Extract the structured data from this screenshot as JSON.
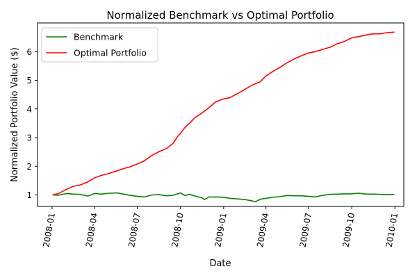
{
  "chart_data": {
    "type": "line",
    "title": "Normalized Benchmark vs Optimal Portfolio",
    "xlabel": "Date",
    "ylabel": "Normalized Portfolio Value ($)",
    "xlim": [
      "2007-12-01",
      "2010-01-20"
    ],
    "ylim": [
      0.6,
      7.0
    ],
    "x_ticks": [
      "2008-01",
      "2008-04",
      "2008-07",
      "2008-10",
      "2009-01",
      "2009-04",
      "2009-07",
      "2009-10",
      "2010-01"
    ],
    "y_ticks": [
      1,
      2,
      3,
      4,
      5,
      6
    ],
    "grid": false,
    "legend_position": "top-left",
    "series": [
      {
        "name": "Benchmark",
        "color": "#008000",
        "points": [
          [
            "2008-01-02",
            1.0
          ],
          [
            "2008-01-15",
            0.99
          ],
          [
            "2008-02-01",
            1.05
          ],
          [
            "2008-02-15",
            1.03
          ],
          [
            "2008-03-01",
            1.02
          ],
          [
            "2008-03-17",
            0.96
          ],
          [
            "2008-04-01",
            1.05
          ],
          [
            "2008-04-15",
            1.03
          ],
          [
            "2008-05-01",
            1.06
          ],
          [
            "2008-05-20",
            1.07
          ],
          [
            "2008-06-01",
            1.03
          ],
          [
            "2008-06-15",
            0.99
          ],
          [
            "2008-07-01",
            0.95
          ],
          [
            "2008-07-15",
            0.93
          ],
          [
            "2008-08-01",
            1.0
          ],
          [
            "2008-08-15",
            1.01
          ],
          [
            "2008-09-01",
            0.97
          ],
          [
            "2008-09-15",
            0.99
          ],
          [
            "2008-09-25",
            1.04
          ],
          [
            "2008-10-01",
            1.07
          ],
          [
            "2008-10-10",
            0.98
          ],
          [
            "2008-10-20",
            1.02
          ],
          [
            "2008-11-01",
            0.96
          ],
          [
            "2008-11-15",
            0.9
          ],
          [
            "2008-11-21",
            0.84
          ],
          [
            "2008-12-01",
            0.93
          ],
          [
            "2008-12-15",
            0.93
          ],
          [
            "2009-01-01",
            0.92
          ],
          [
            "2009-01-15",
            0.88
          ],
          [
            "2009-02-01",
            0.86
          ],
          [
            "2009-02-15",
            0.84
          ],
          [
            "2009-03-01",
            0.8
          ],
          [
            "2009-03-09",
            0.76
          ],
          [
            "2009-03-20",
            0.85
          ],
          [
            "2009-04-01",
            0.88
          ],
          [
            "2009-04-15",
            0.92
          ],
          [
            "2009-05-01",
            0.94
          ],
          [
            "2009-05-15",
            0.98
          ],
          [
            "2009-06-01",
            0.97
          ],
          [
            "2009-06-15",
            0.97
          ],
          [
            "2009-07-01",
            0.95
          ],
          [
            "2009-07-15",
            0.93
          ],
          [
            "2009-08-01",
            0.99
          ],
          [
            "2009-08-15",
            1.02
          ],
          [
            "2009-09-01",
            1.03
          ],
          [
            "2009-09-15",
            1.04
          ],
          [
            "2009-10-01",
            1.04
          ],
          [
            "2009-10-15",
            1.06
          ],
          [
            "2009-11-01",
            1.03
          ],
          [
            "2009-11-15",
            1.03
          ],
          [
            "2009-12-01",
            1.02
          ],
          [
            "2009-12-15",
            1.01
          ],
          [
            "2009-12-31",
            1.02
          ]
        ]
      },
      {
        "name": "Optimal Portfolio",
        "color": "#ff0000",
        "points": [
          [
            "2008-01-02",
            1.0
          ],
          [
            "2008-01-15",
            1.05
          ],
          [
            "2008-02-01",
            1.2
          ],
          [
            "2008-02-15",
            1.3
          ],
          [
            "2008-03-01",
            1.35
          ],
          [
            "2008-03-17",
            1.45
          ],
          [
            "2008-04-01",
            1.6
          ],
          [
            "2008-04-15",
            1.68
          ],
          [
            "2008-05-01",
            1.75
          ],
          [
            "2008-05-20",
            1.85
          ],
          [
            "2008-06-01",
            1.92
          ],
          [
            "2008-06-15",
            1.98
          ],
          [
            "2008-07-01",
            2.08
          ],
          [
            "2008-07-15",
            2.18
          ],
          [
            "2008-08-01",
            2.38
          ],
          [
            "2008-08-15",
            2.5
          ],
          [
            "2008-09-01",
            2.62
          ],
          [
            "2008-09-15",
            2.8
          ],
          [
            "2008-09-25",
            3.05
          ],
          [
            "2008-10-01",
            3.15
          ],
          [
            "2008-10-10",
            3.35
          ],
          [
            "2008-10-20",
            3.5
          ],
          [
            "2008-11-01",
            3.7
          ],
          [
            "2008-11-15",
            3.85
          ],
          [
            "2008-12-01",
            4.05
          ],
          [
            "2008-12-15",
            4.25
          ],
          [
            "2009-01-01",
            4.35
          ],
          [
            "2009-01-15",
            4.4
          ],
          [
            "2009-02-01",
            4.55
          ],
          [
            "2009-02-15",
            4.68
          ],
          [
            "2009-03-01",
            4.82
          ],
          [
            "2009-03-20",
            4.95
          ],
          [
            "2009-04-01",
            5.15
          ],
          [
            "2009-04-15",
            5.3
          ],
          [
            "2009-05-01",
            5.45
          ],
          [
            "2009-05-15",
            5.6
          ],
          [
            "2009-06-01",
            5.75
          ],
          [
            "2009-06-15",
            5.85
          ],
          [
            "2009-07-01",
            5.95
          ],
          [
            "2009-07-15",
            6.0
          ],
          [
            "2009-08-01",
            6.08
          ],
          [
            "2009-08-15",
            6.15
          ],
          [
            "2009-09-01",
            6.28
          ],
          [
            "2009-09-15",
            6.35
          ],
          [
            "2009-10-01",
            6.48
          ],
          [
            "2009-10-15",
            6.52
          ],
          [
            "2009-11-01",
            6.58
          ],
          [
            "2009-11-15",
            6.62
          ],
          [
            "2009-12-01",
            6.62
          ],
          [
            "2009-12-15",
            6.66
          ],
          [
            "2009-12-31",
            6.68
          ]
        ]
      }
    ]
  }
}
